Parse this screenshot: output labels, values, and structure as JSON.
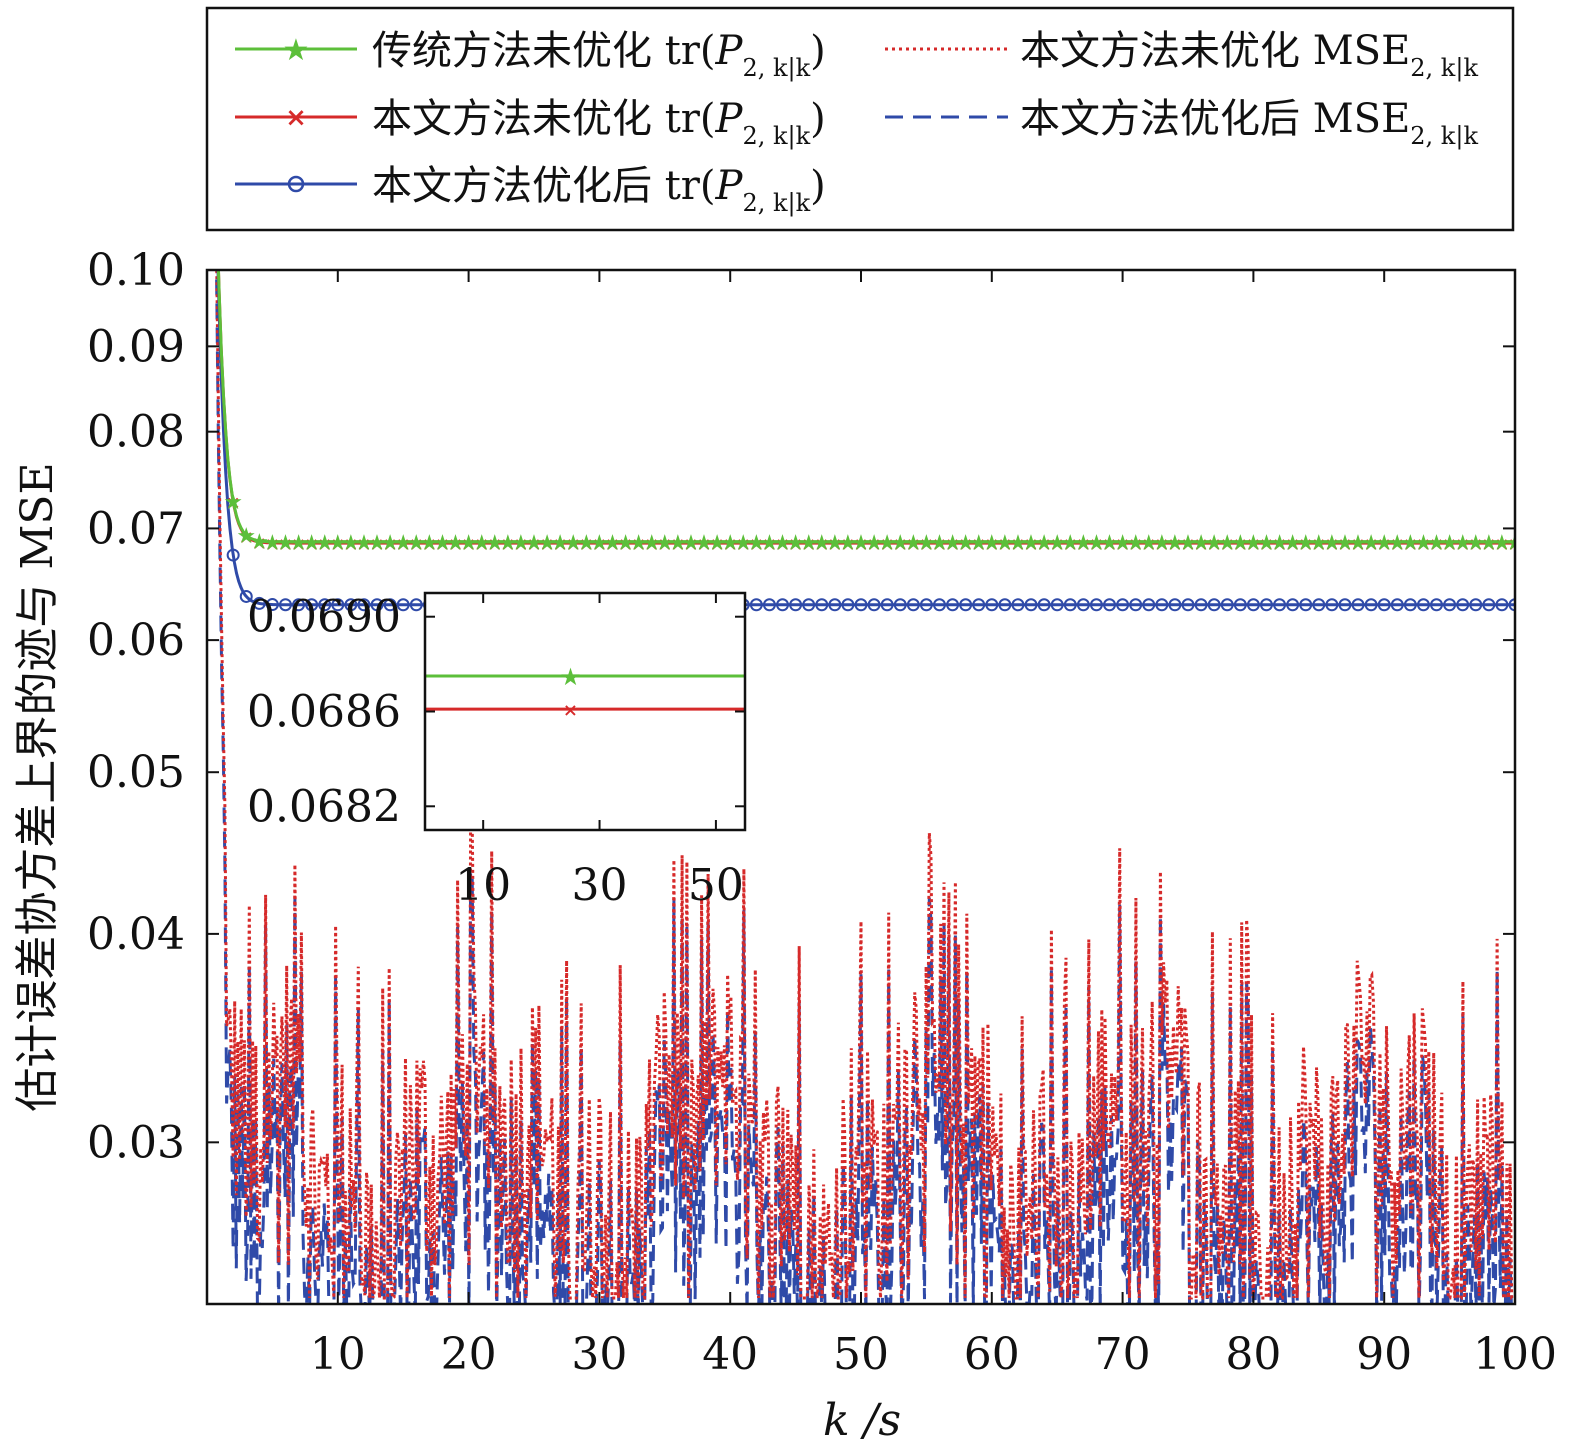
{
  "chart_data": {
    "type": "line",
    "xlabel": "k /s",
    "ylabel": "估计误差协方差上界的迹与 MSE",
    "xlim": [
      0,
      100
    ],
    "ylim": [
      0.024,
      0.1
    ],
    "yscale": "log",
    "xticks": [
      10,
      20,
      30,
      40,
      50,
      60,
      70,
      80,
      90,
      100
    ],
    "yticks": [
      0.03,
      0.04,
      0.05,
      0.06,
      0.07,
      0.08,
      0.09,
      0.1
    ],
    "ytick_labels": [
      "0.03",
      "0.04",
      "0.05",
      "0.06",
      "0.07",
      "0.08",
      "0.09",
      "0.10"
    ],
    "legend_position": "top, outside plot (two columns)",
    "series": [
      {
        "name": "传统方法未优化 tr(P2, k|k)",
        "color": "#5cbf3a",
        "style": "solid",
        "marker": "star",
        "start": 0.12,
        "steady": 0.0687,
        "tau": 0.55
      },
      {
        "name": "本文方法未优化 tr(P2, k|k)",
        "color": "#d62a2a",
        "style": "solid",
        "marker": "x",
        "start": 0.12,
        "steady": 0.0686,
        "tau": 0.55
      },
      {
        "name": "本文方法优化后 tr(P2, k|k)",
        "color": "#2f4aa8",
        "style": "solid",
        "marker": "circle",
        "start": 0.12,
        "steady": 0.063,
        "tau": 0.55
      },
      {
        "name": "本文方法未优化 MSE2, k|k",
        "color": "#d62a2a",
        "style": "dotted",
        "level_range": [
          0.0245,
          0.0385
        ],
        "typical": 0.0295
      },
      {
        "name": "本文方法优化后 MSE2, k|k",
        "color": "#2f4aa8",
        "style": "dashed",
        "level_range": [
          0.0237,
          0.036
        ],
        "typical": 0.0275
      }
    ],
    "inset": {
      "xticks": [
        10,
        30,
        50
      ],
      "yticks": [
        0.0682,
        0.0686,
        0.069
      ],
      "ytick_labels": [
        "0.0682",
        "0.0686",
        "0.0690"
      ],
      "xlim": [
        0,
        55
      ],
      "ylim": [
        0.0681,
        0.0691
      ],
      "series": [
        {
          "name": "传统方法未优化 tr(P2, k|k)",
          "value": 0.06875,
          "color": "#5cbf3a",
          "marker": "star"
        },
        {
          "name": "本文方法未优化 tr(P2, k|k)",
          "value": 0.06861,
          "color": "#d62a2a",
          "marker": "x"
        }
      ]
    }
  },
  "legend": {
    "items": [
      {
        "prefix": "传统方法未优化",
        "func": "tr(",
        "var": "P",
        "sub": "2, k|k",
        "suffix": ")"
      },
      {
        "prefix": "本文方法未优化",
        "func": "tr(",
        "var": "P",
        "sub": "2, k|k",
        "suffix": ")"
      },
      {
        "prefix": "本文方法优化后",
        "func": "tr(",
        "var": "P",
        "sub": "2, k|k",
        "suffix": ")"
      },
      {
        "prefix": "本文方法未优化",
        "func": "",
        "var": "MSE",
        "sub": "2, k|k",
        "suffix": ""
      },
      {
        "prefix": "本文方法优化后",
        "func": "",
        "var": "MSE",
        "sub": "2, k|k",
        "suffix": ""
      }
    ]
  }
}
